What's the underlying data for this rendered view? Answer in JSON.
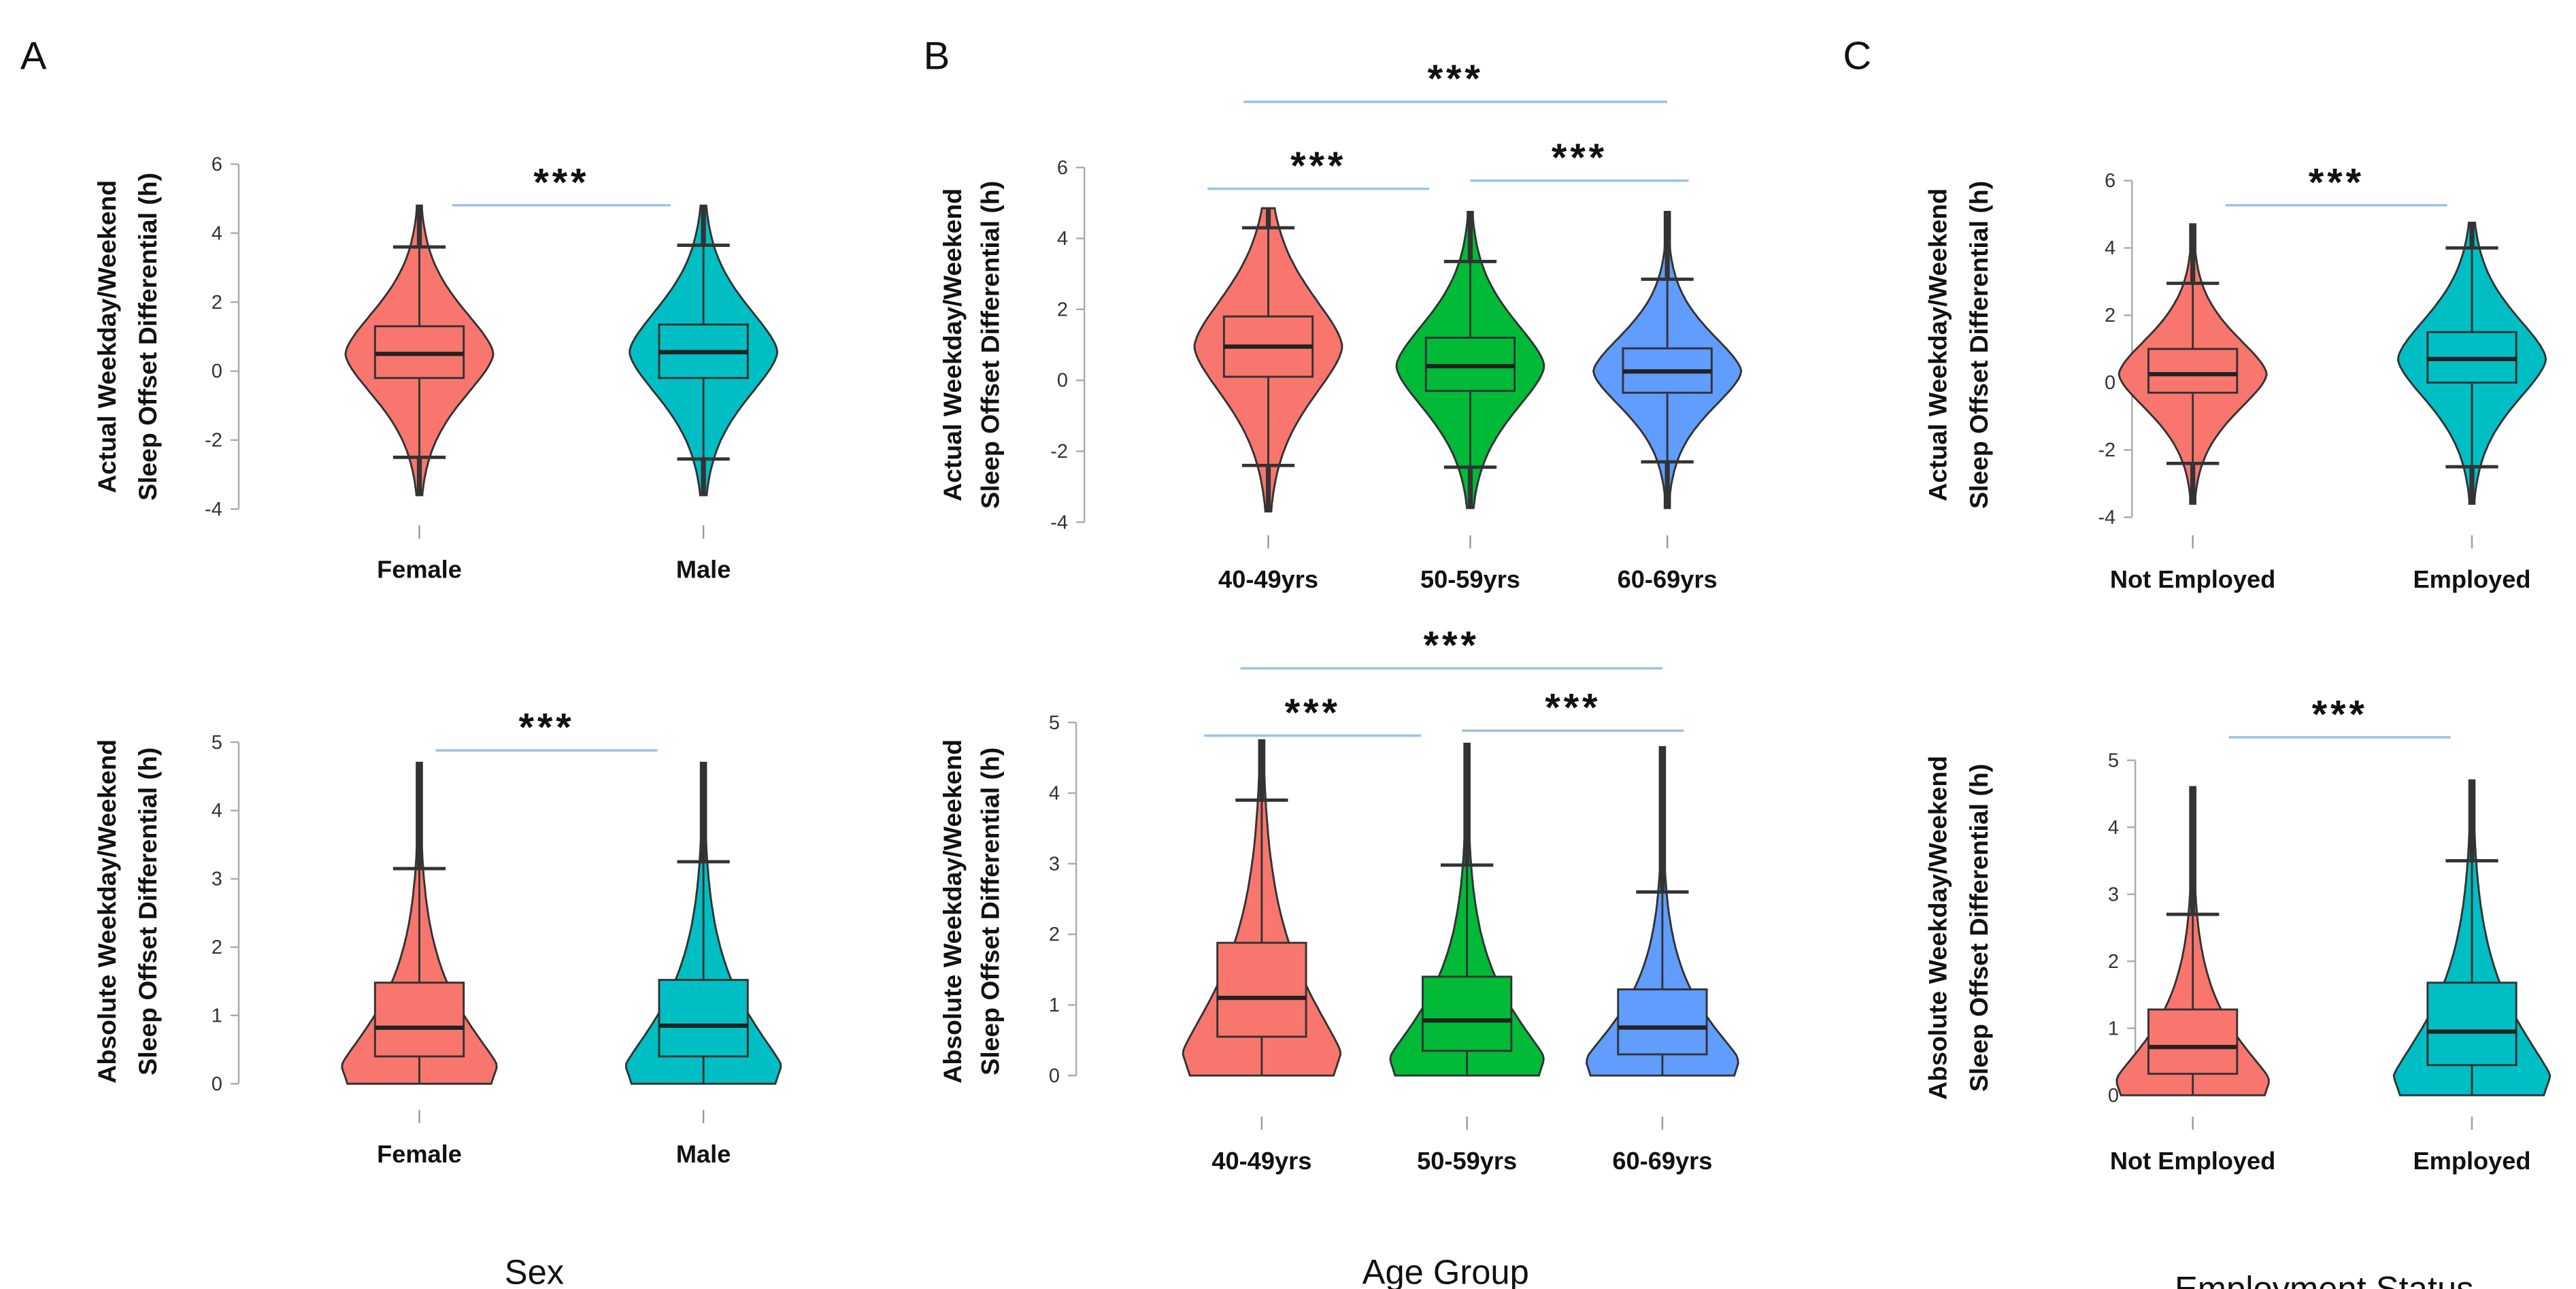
{
  "panels": [
    {
      "letter": "A",
      "xlabel": "Sex"
    },
    {
      "letter": "B",
      "xlabel": "Age Group"
    },
    {
      "letter": "C",
      "xlabel": "Employment Status"
    }
  ],
  "colors": {
    "red": "#F8766D",
    "teal": "#00BFC4",
    "green": "#00BA38",
    "blue": "#619CFF",
    "significance_line": "#9DC3E6",
    "outline": "#333333"
  },
  "chart_data": [
    {
      "type": "violin",
      "panel": "A",
      "ylabel": [
        "Actual Weekday/Weekend",
        "Sleep Offset Differential (h)"
      ],
      "ylim": [
        -4,
        6
      ],
      "yticks": [
        -4,
        -2,
        0,
        2,
        4,
        6
      ],
      "grid": false,
      "categories": [
        "Female",
        "Male"
      ],
      "groups": [
        {
          "color": "#F8766D",
          "min": -3.6,
          "whisker_low": -2.5,
          "q1": -0.2,
          "median": 0.5,
          "q3": 1.3,
          "whisker_high": 3.6,
          "max": 4.8
        },
        {
          "color": "#00BFC4",
          "min": -3.6,
          "whisker_low": -2.55,
          "q1": -0.2,
          "median": 0.55,
          "q3": 1.35,
          "whisker_high": 3.65,
          "max": 4.8
        }
      ],
      "significance": [
        {
          "from": 0,
          "to": 1,
          "label": "***"
        }
      ]
    },
    {
      "type": "violin",
      "panel": "A",
      "ylabel": [
        "Absolute Weekday/Weekend",
        "Sleep Offset Differential (h)"
      ],
      "ylim": [
        0,
        5
      ],
      "yticks": [
        0,
        1,
        2,
        3,
        4,
        5
      ],
      "grid": false,
      "categories": [
        "Female",
        "Male"
      ],
      "groups": [
        {
          "color": "#F8766D",
          "min": 0,
          "whisker_low": 0,
          "q1": 0.4,
          "median": 0.82,
          "q3": 1.48,
          "whisker_high": 3.15,
          "max": 4.7
        },
        {
          "color": "#00BFC4",
          "min": 0,
          "whisker_low": 0,
          "q1": 0.4,
          "median": 0.85,
          "q3": 1.52,
          "whisker_high": 3.25,
          "max": 4.7
        }
      ],
      "significance": [
        {
          "from": 0,
          "to": 1,
          "label": "***"
        }
      ]
    },
    {
      "type": "violin",
      "panel": "B",
      "ylabel": [
        "Actual Weekday/Weekend",
        "Sleep Offset Differential (h)"
      ],
      "ylim": [
        -4,
        6
      ],
      "yticks": [
        -4,
        -2,
        0,
        2,
        4,
        6
      ],
      "grid": false,
      "categories": [
        "40-49yrs",
        "50-59yrs",
        "60-69yrs"
      ],
      "groups": [
        {
          "color": "#F8766D",
          "min": -3.7,
          "whisker_low": -2.4,
          "q1": 0.1,
          "median": 0.95,
          "q3": 1.8,
          "whisker_high": 4.3,
          "max": 4.85
        },
        {
          "color": "#00BA38",
          "min": -3.6,
          "whisker_low": -2.45,
          "q1": -0.3,
          "median": 0.4,
          "q3": 1.2,
          "whisker_high": 3.35,
          "max": 4.75
        },
        {
          "color": "#619CFF",
          "min": -3.6,
          "whisker_low": -2.3,
          "q1": -0.35,
          "median": 0.25,
          "q3": 0.9,
          "whisker_high": 2.85,
          "max": 4.75
        }
      ],
      "significance": [
        {
          "from": 0,
          "to": 1,
          "label": "***"
        },
        {
          "from": 1,
          "to": 2,
          "label": "***"
        },
        {
          "from": 0,
          "to": 2,
          "label": "***"
        }
      ]
    },
    {
      "type": "violin",
      "panel": "B",
      "ylabel": [
        "Absolute Weekday/Weekend",
        "Sleep Offset Differential (h)"
      ],
      "ylim": [
        0,
        5
      ],
      "yticks": [
        0,
        1,
        2,
        3,
        4,
        5
      ],
      "grid": false,
      "categories": [
        "40-49yrs",
        "50-59yrs",
        "60-69yrs"
      ],
      "groups": [
        {
          "color": "#F8766D",
          "min": 0,
          "whisker_low": 0,
          "q1": 0.55,
          "median": 1.1,
          "q3": 1.88,
          "whisker_high": 3.9,
          "max": 4.75
        },
        {
          "color": "#00BA38",
          "min": 0,
          "whisker_low": 0,
          "q1": 0.35,
          "median": 0.78,
          "q3": 1.4,
          "whisker_high": 2.98,
          "max": 4.7
        },
        {
          "color": "#619CFF",
          "min": 0,
          "whisker_low": 0,
          "q1": 0.3,
          "median": 0.68,
          "q3": 1.22,
          "whisker_high": 2.6,
          "max": 4.65
        }
      ],
      "significance": [
        {
          "from": 0,
          "to": 1,
          "label": "***"
        },
        {
          "from": 1,
          "to": 2,
          "label": "***"
        },
        {
          "from": 0,
          "to": 2,
          "label": "***"
        }
      ]
    },
    {
      "type": "violin",
      "panel": "C",
      "ylabel": [
        "Actual Weekday/Weekend",
        "Sleep Offset Differential (h)"
      ],
      "ylim": [
        -4,
        6
      ],
      "yticks": [
        -4,
        -2,
        0,
        2,
        4,
        6
      ],
      "grid": false,
      "categories": [
        "Not Employed",
        "Employed"
      ],
      "groups": [
        {
          "color": "#F8766D",
          "min": -3.6,
          "whisker_low": -2.4,
          "q1": -0.3,
          "median": 0.25,
          "q3": 1.0,
          "whisker_high": 2.95,
          "max": 4.7
        },
        {
          "color": "#00BFC4",
          "min": -3.6,
          "whisker_low": -2.5,
          "q1": 0.0,
          "median": 0.7,
          "q3": 1.5,
          "whisker_high": 4.0,
          "max": 4.75
        }
      ],
      "significance": [
        {
          "from": 0,
          "to": 1,
          "label": "***"
        }
      ]
    },
    {
      "type": "violin",
      "panel": "C",
      "ylabel": [
        "Absolute Weekday/Weekend",
        "Sleep Offset Differential (h)"
      ],
      "ylim": [
        0,
        5
      ],
      "yticks": [
        0,
        1,
        2,
        3,
        4,
        5
      ],
      "grid": false,
      "categories": [
        "Not Employed",
        "Employed"
      ],
      "groups": [
        {
          "color": "#F8766D",
          "min": 0,
          "whisker_low": 0,
          "q1": 0.32,
          "median": 0.72,
          "q3": 1.28,
          "whisker_high": 2.7,
          "max": 4.6
        },
        {
          "color": "#00BFC4",
          "min": 0,
          "whisker_low": 0,
          "q1": 0.45,
          "median": 0.95,
          "q3": 1.68,
          "whisker_high": 3.5,
          "max": 4.7
        }
      ],
      "significance": [
        {
          "from": 0,
          "to": 1,
          "label": "***"
        }
      ]
    }
  ]
}
